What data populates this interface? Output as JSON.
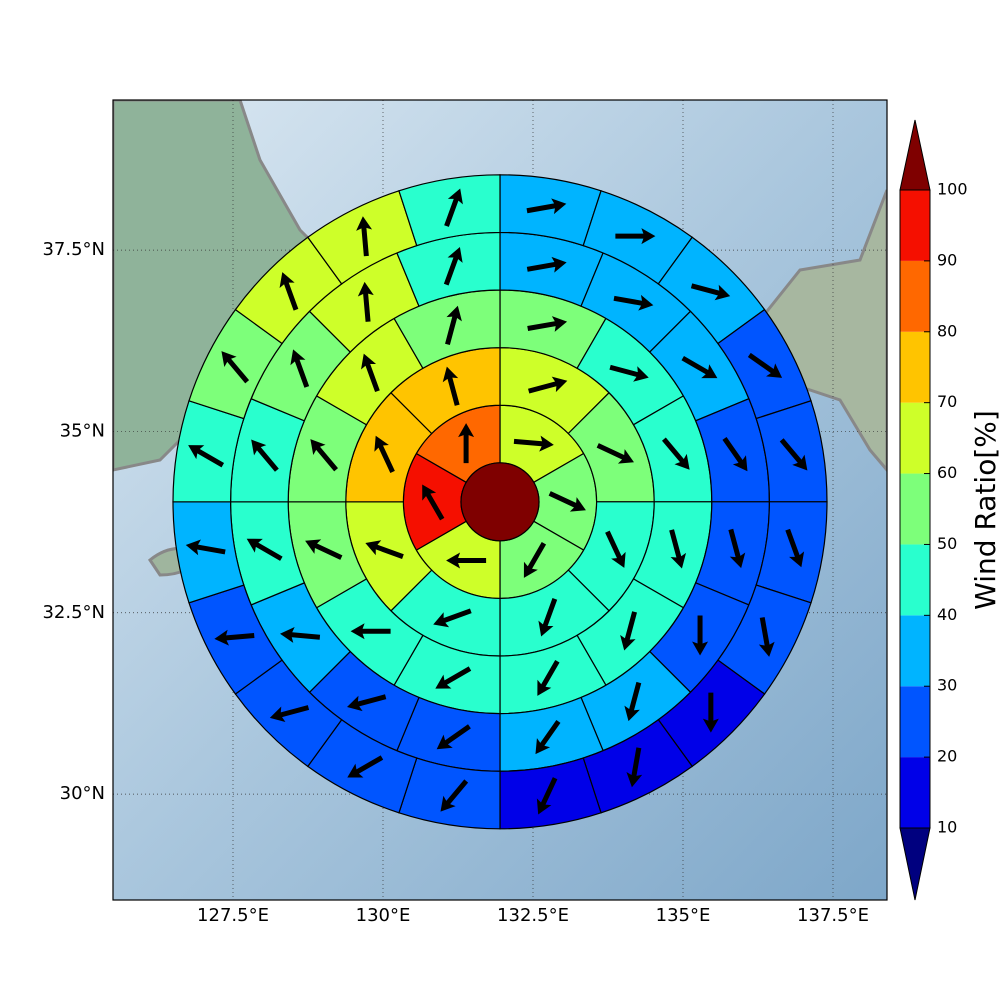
{
  "chart_data": {
    "type": "polar-sectors",
    "xlim": [
      125.5,
      138.4
    ],
    "ylim": [
      28.54,
      39.57
    ],
    "xticks": [
      {
        "value": 127.5,
        "label": "127.5°E"
      },
      {
        "value": 130,
        "label": "130°E"
      },
      {
        "value": 132.5,
        "label": "132.5°E"
      },
      {
        "value": 135,
        "label": "135°E"
      },
      {
        "value": 137.5,
        "label": "137.5°E"
      }
    ],
    "yticks": [
      {
        "value": 30,
        "label": "30°N"
      },
      {
        "value": 32.5,
        "label": "32.5°N"
      },
      {
        "value": 35,
        "label": "35°N"
      },
      {
        "value": 37.5,
        "label": "37.5°N"
      }
    ],
    "grid": true,
    "center": {
      "lon": 131.95,
      "lat": 34.03,
      "value": 105
    },
    "rings": [
      {
        "values": [
          65,
          55,
          55,
          65,
          95,
          85
        ],
        "directions": [
          95,
          115,
          210,
          270,
          330,
          0
        ]
      },
      {
        "values": [
          65,
          55,
          45,
          45,
          45,
          65,
          75,
          75
        ],
        "directions": [
          75,
          115,
          155,
          200,
          250,
          290,
          335,
          345
        ]
      },
      {
        "values": [
          55,
          45,
          45,
          45,
          45,
          45,
          45,
          45,
          55,
          55,
          65,
          55
        ],
        "directions": [
          80,
          105,
          140,
          165,
          195,
          210,
          240,
          270,
          295,
          320,
          340,
          15
        ]
      },
      {
        "values": [
          35,
          35,
          35,
          25,
          25,
          25,
          35,
          35,
          25,
          25,
          35,
          45,
          45,
          55,
          65,
          45
        ],
        "directions": [
          80,
          100,
          120,
          145,
          165,
          180,
          195,
          215,
          235,
          255,
          275,
          300,
          320,
          340,
          355,
          20
        ]
      },
      {
        "values": [
          35,
          35,
          35,
          25,
          25,
          25,
          25,
          15,
          15,
          15,
          25,
          25,
          25,
          25,
          35,
          45,
          55,
          65,
          65,
          45
        ],
        "directions": [
          80,
          90,
          105,
          125,
          140,
          160,
          170,
          180,
          190,
          205,
          220,
          240,
          255,
          265,
          280,
          300,
          320,
          340,
          355,
          20
        ]
      }
    ],
    "colorbar": {
      "label": "Wind Ratio[%]",
      "ticks": [
        10,
        20,
        30,
        40,
        50,
        60,
        70,
        80,
        90,
        100
      ],
      "colors": [
        "#00007f",
        "#0000e8",
        "#0055ff",
        "#00b4ff",
        "#29ffce",
        "#7dff7a",
        "#ceff29",
        "#ffc400",
        "#ff6800",
        "#f50f00",
        "#7f0000"
      ]
    }
  }
}
